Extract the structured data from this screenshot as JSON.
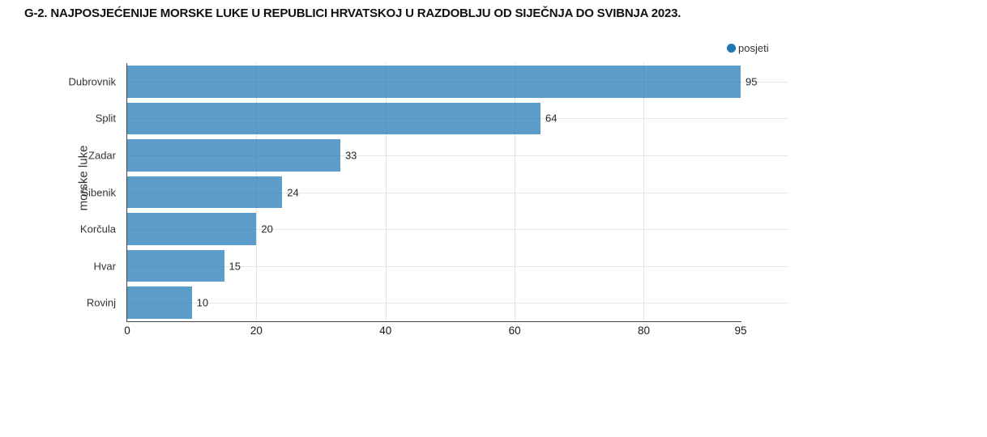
{
  "title": "G-2. NAJPOSJEĆENIJE MORSKE LUKE U REPUBLICI HRVATSKOJ U RAZDOBLJU OD SIJEČNJA DO SVIBNJA 2023.",
  "legend": {
    "label": "posjeti"
  },
  "colors": {
    "series": "#1f77b4",
    "bar_fill": "rgba(31,119,180,0.72)",
    "gridline": "#e3e3e3",
    "axis_line": "#424242",
    "label_text": "#333333"
  },
  "chart_data": {
    "type": "bar",
    "orientation": "horizontal",
    "title": "G-2. NAJPOSJEĆENIJE MORSKE LUKE U REPUBLICI HRVATSKOJ U RAZDOBLJU OD SIJEČNJA DO SVIBNJA 2023.",
    "series_name": "posjeti",
    "categories": [
      "Dubrovnik",
      "Split",
      "Zadar",
      "Šibenik",
      "Korčula",
      "Hvar",
      "Rovinj"
    ],
    "values": [
      95,
      64,
      33,
      24,
      20,
      15,
      10
    ],
    "data_labels": [
      95,
      64,
      33,
      24,
      20,
      15,
      10
    ],
    "xlabel": "",
    "ylabel": "morske luke",
    "xlim": [
      0,
      95
    ],
    "x_ticks": [
      0,
      20,
      40,
      60,
      80,
      95
    ],
    "grid": true,
    "legend_position": "top-right"
  }
}
